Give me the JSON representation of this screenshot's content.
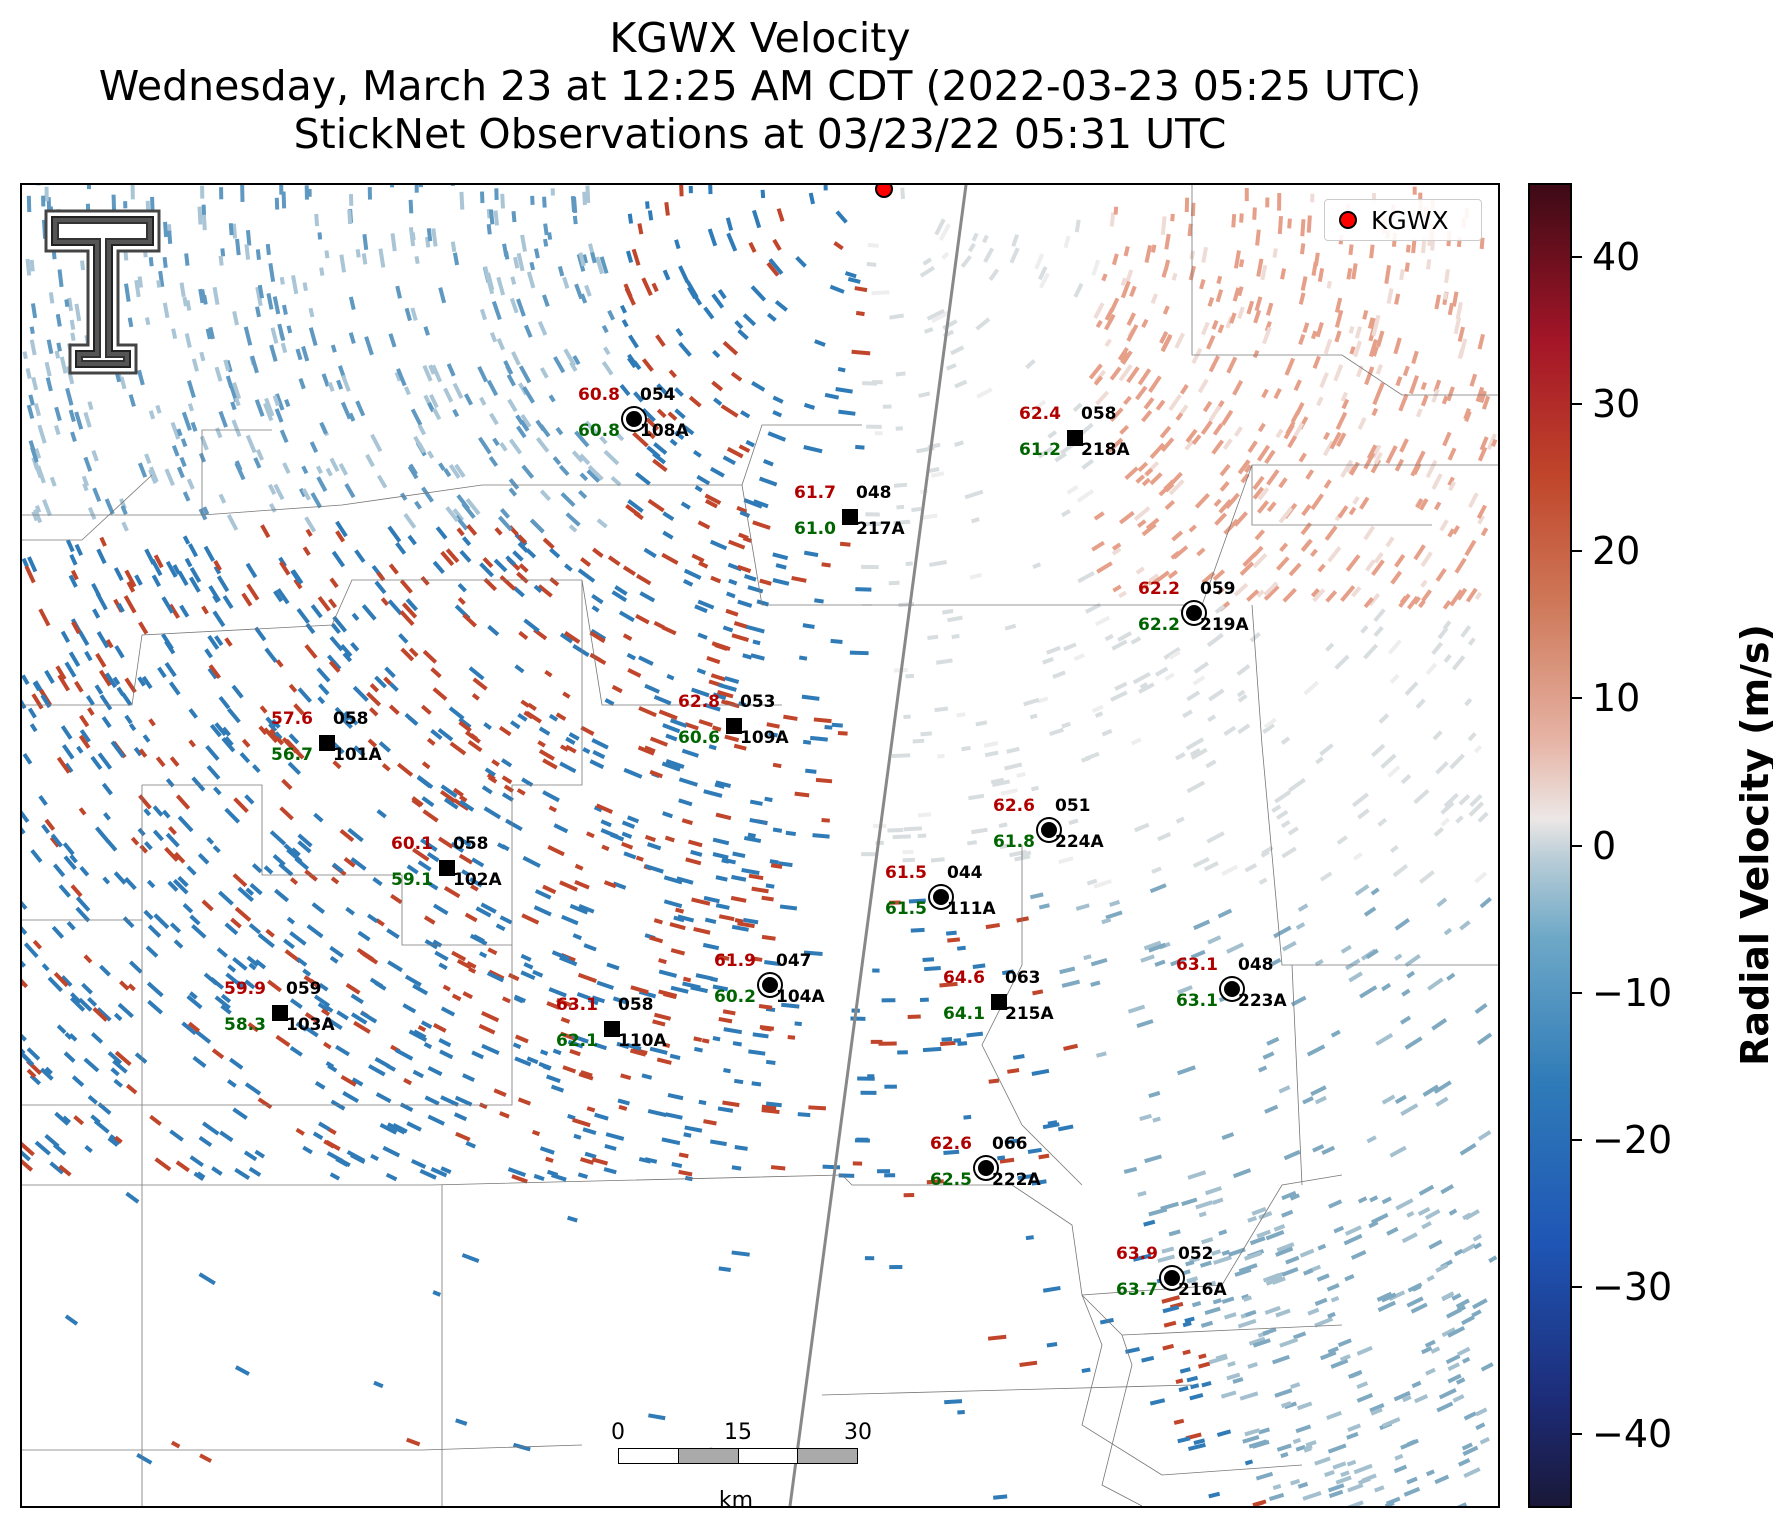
{
  "title": {
    "line1": "KGWX Velocity",
    "line2": "Wednesday, March 23 at 12:25 AM CDT (2022-03-23 05:25 UTC)",
    "line3": "StickNet Observations at 03/23/22 05:31 UTC"
  },
  "legend": {
    "label": "KGWX",
    "marker_color": "#ff0000"
  },
  "colorbar": {
    "label": "Radial Velocity (m/s)",
    "ticks": [
      "40",
      "30",
      "20",
      "10",
      "0",
      "−10",
      "−20",
      "−30",
      "−40"
    ],
    "range": [
      -45,
      45
    ]
  },
  "scalebar": {
    "ticks": [
      "0",
      "15",
      "30"
    ],
    "units": "km"
  },
  "stations": [
    {
      "id": "108A",
      "temp": "60.8",
      "dew": "60.8",
      "wind": "054",
      "marker": "circle"
    },
    {
      "id": "218A",
      "temp": "62.4",
      "dew": "61.2",
      "wind": "058",
      "marker": "square"
    },
    {
      "id": "217A",
      "temp": "61.7",
      "dew": "61.0",
      "wind": "048",
      "marker": "square"
    },
    {
      "id": "219A",
      "temp": "62.2",
      "dew": "62.2",
      "wind": "059",
      "marker": "circle"
    },
    {
      "id": "109A",
      "temp": "62.8",
      "dew": "60.6",
      "wind": "053",
      "marker": "square"
    },
    {
      "id": "101A",
      "temp": "57.6",
      "dew": "56.7",
      "wind": "058",
      "marker": "square"
    },
    {
      "id": "224A",
      "temp": "62.6",
      "dew": "61.8",
      "wind": "051",
      "marker": "circle"
    },
    {
      "id": "102A",
      "temp": "60.1",
      "dew": "59.1",
      "wind": "058",
      "marker": "square"
    },
    {
      "id": "111A",
      "temp": "61.5",
      "dew": "61.5",
      "wind": "044",
      "marker": "circle"
    },
    {
      "id": "104A",
      "temp": "61.9",
      "dew": "60.2",
      "wind": "047",
      "marker": "circle"
    },
    {
      "id": "215A",
      "temp": "64.6",
      "dew": "64.1",
      "wind": "063",
      "marker": "square"
    },
    {
      "id": "223A",
      "temp": "63.1",
      "dew": "63.1",
      "wind": "048",
      "marker": "circle"
    },
    {
      "id": "103A",
      "temp": "59.9",
      "dew": "58.3",
      "wind": "059",
      "marker": "square"
    },
    {
      "id": "110A",
      "temp": "63.1",
      "dew": "62.1",
      "wind": "058",
      "marker": "square"
    },
    {
      "id": "222A",
      "temp": "62.6",
      "dew": "62.5",
      "wind": "066",
      "marker": "circle"
    },
    {
      "id": "216A",
      "temp": "63.9",
      "dew": "63.7",
      "wind": "052",
      "marker": "circle"
    }
  ],
  "colors": {
    "temp": "#b00000",
    "dew": "#006400",
    "inbound_blue": "#2f7bb8",
    "outbound_red": "#c0452a",
    "neutral_gray": "#c9d3d8",
    "salmon": "#e6a08a"
  }
}
